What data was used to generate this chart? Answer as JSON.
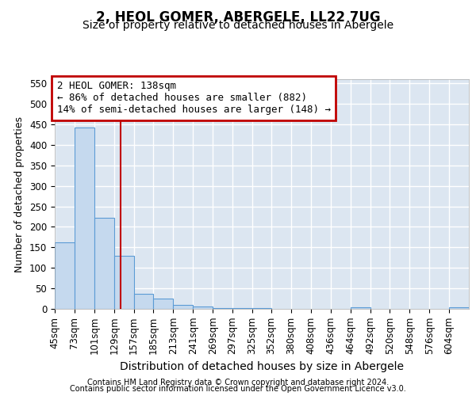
{
  "title": "2, HEOL GOMER, ABERGELE, LL22 7UG",
  "subtitle": "Size of property relative to detached houses in Abergele",
  "xlabel": "Distribution of detached houses by size in Abergele",
  "ylabel": "Number of detached properties",
  "footer_line1": "Contains HM Land Registry data © Crown copyright and database right 2024.",
  "footer_line2": "Contains public sector information licensed under the Open Government Licence v3.0.",
  "bin_labels": [
    "45sqm",
    "73sqm",
    "101sqm",
    "129sqm",
    "157sqm",
    "185sqm",
    "213sqm",
    "241sqm",
    "269sqm",
    "297sqm",
    "325sqm",
    "352sqm",
    "380sqm",
    "408sqm",
    "436sqm",
    "464sqm",
    "492sqm",
    "520sqm",
    "548sqm",
    "576sqm",
    "604sqm"
  ],
  "bin_edges": [
    45,
    73,
    101,
    129,
    157,
    185,
    213,
    241,
    269,
    297,
    325,
    352,
    380,
    408,
    436,
    464,
    492,
    520,
    548,
    576,
    604,
    632
  ],
  "bar_heights": [
    163,
    443,
    222,
    130,
    36,
    25,
    10,
    5,
    2,
    1,
    1,
    0,
    0,
    0,
    0,
    3,
    0,
    0,
    0,
    0,
    3
  ],
  "bar_color": "#c5d9ee",
  "bar_edge_color": "#5b9bd5",
  "plot_bg_color": "#dce6f1",
  "grid_color": "#ffffff",
  "fig_bg_color": "#ffffff",
  "property_size": 138,
  "vline_color": "#c00000",
  "annotation_line1": "2 HEOL GOMER: 138sqm",
  "annotation_line2": "← 86% of detached houses are smaller (882)",
  "annotation_line3": "14% of semi-detached houses are larger (148) →",
  "annotation_box_edge_color": "#c00000",
  "ylim": [
    0,
    560
  ],
  "yticks": [
    0,
    50,
    100,
    150,
    200,
    250,
    300,
    350,
    400,
    450,
    500,
    550
  ],
  "title_fontsize": 12,
  "subtitle_fontsize": 10,
  "xlabel_fontsize": 10,
  "ylabel_fontsize": 9,
  "tick_fontsize": 8.5,
  "annotation_fontsize": 9,
  "footer_fontsize": 7
}
